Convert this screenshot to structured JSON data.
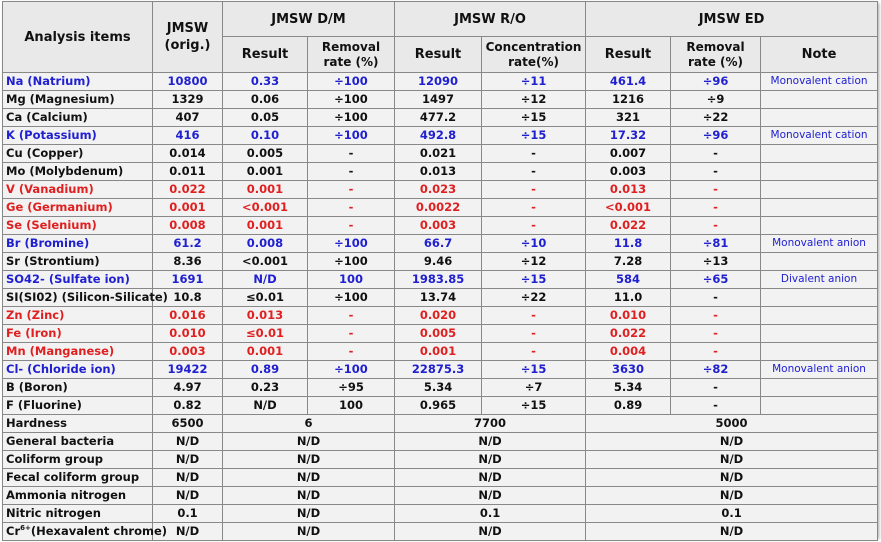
{
  "table": {
    "headers": {
      "analysis_items": "Analysis items",
      "jmsw_orig": "JMSW (orig.)",
      "dm_group": "JMSW D/M",
      "ro_group": "JMSW R/O",
      "ed_group": "JMSW ED",
      "result": "Result",
      "removal_rate": "Removal rate (%)",
      "concentration_rate": "Concentration rate(%)",
      "note": "Note"
    },
    "rows": [
      {
        "name": "Na (Natrium)",
        "orig": "10800",
        "dm_result": "0.33",
        "dm_removal": "÷100",
        "ro_result": "12090",
        "ro_conc": "÷11",
        "ed_result": "461.4",
        "ed_removal": "÷96",
        "note": "Monovalent cation",
        "style": "blue"
      },
      {
        "name": "Mg (Magnesium)",
        "orig": "1329",
        "dm_result": "0.06",
        "dm_removal": "÷100",
        "ro_result": "1497",
        "ro_conc": "÷12",
        "ed_result": "1216",
        "ed_removal": "÷9",
        "note": "",
        "style": "black"
      },
      {
        "name": "Ca (Calcium)",
        "orig": "407",
        "dm_result": "0.05",
        "dm_removal": "÷100",
        "ro_result": "477.2",
        "ro_conc": "÷15",
        "ed_result": "321",
        "ed_removal": "÷22",
        "note": "",
        "style": "black"
      },
      {
        "name": "K (Potassium)",
        "orig": "416",
        "dm_result": "0.10",
        "dm_removal": "÷100",
        "ro_result": "492.8",
        "ro_conc": "÷15",
        "ed_result": "17.32",
        "ed_removal": "÷96",
        "note": "Monovalent cation",
        "style": "blue"
      },
      {
        "name": "Cu (Copper)",
        "orig": "0.014",
        "dm_result": "0.005",
        "dm_removal": "-",
        "ro_result": "0.021",
        "ro_conc": "-",
        "ed_result": "0.007",
        "ed_removal": "-",
        "note": "",
        "style": "black"
      },
      {
        "name": "Mo (Molybdenum)",
        "orig": "0.011",
        "dm_result": "0.001",
        "dm_removal": "-",
        "ro_result": "0.013",
        "ro_conc": "-",
        "ed_result": "0.003",
        "ed_removal": "-",
        "note": "",
        "style": "black"
      },
      {
        "name": "V (Vanadium)",
        "orig": "0.022",
        "dm_result": "0.001",
        "dm_removal": "-",
        "ro_result": "0.023",
        "ro_conc": "-",
        "ed_result": "0.013",
        "ed_removal": "-",
        "note": "",
        "style": "red"
      },
      {
        "name": "Ge (Germanium)",
        "orig": "0.001",
        "dm_result": "<0.001",
        "dm_removal": "-",
        "ro_result": "0.0022",
        "ro_conc": "-",
        "ed_result": "<0.001",
        "ed_removal": "-",
        "note": "",
        "style": "red"
      },
      {
        "name": "Se (Selenium)",
        "orig": "0.008",
        "dm_result": "0.001",
        "dm_removal": "-",
        "ro_result": "0.003",
        "ro_conc": "-",
        "ed_result": "0.022",
        "ed_removal": "-",
        "note": "",
        "style": "red"
      },
      {
        "name": "Br (Bromine)",
        "orig": "61.2",
        "dm_result": "0.008",
        "dm_removal": "÷100",
        "ro_result": "66.7",
        "ro_conc": "÷10",
        "ed_result": "11.8",
        "ed_removal": "÷81",
        "note": "Monovalent anion",
        "style": "blue"
      },
      {
        "name": "Sr (Strontium)",
        "orig": "8.36",
        "dm_result": "<0.001",
        "dm_removal": "÷100",
        "ro_result": "9.46",
        "ro_conc": "÷12",
        "ed_result": "7.28",
        "ed_removal": "÷13",
        "note": "",
        "style": "black"
      },
      {
        "name": "SO42- (Sulfate ion)",
        "orig": "1691",
        "dm_result": "N/D",
        "dm_removal": "100",
        "ro_result": "1983.85",
        "ro_conc": "÷15",
        "ed_result": "584",
        "ed_removal": "÷65",
        "note": "Divalent anion",
        "style": "blue"
      },
      {
        "name": "SI(SI02) (Silicon-Silicate)",
        "orig": "10.8",
        "dm_result": "≤0.01",
        "dm_removal": "÷100",
        "ro_result": "13.74",
        "ro_conc": "÷22",
        "ed_result": "11.0",
        "ed_removal": "-",
        "note": "",
        "style": "black"
      },
      {
        "name": "Zn (Zinc)",
        "orig": "0.016",
        "dm_result": "0.013",
        "dm_removal": "-",
        "ro_result": "0.020",
        "ro_conc": "-",
        "ed_result": "0.010",
        "ed_removal": "-",
        "note": "",
        "style": "red"
      },
      {
        "name": "Fe (Iron)",
        "orig": "0.010",
        "dm_result": "≤0.01",
        "dm_removal": "-",
        "ro_result": "0.005",
        "ro_conc": "-",
        "ed_result": "0.022",
        "ed_removal": "-",
        "note": "",
        "style": "red"
      },
      {
        "name": "Mn (Manganese)",
        "orig": "0.003",
        "dm_result": "0.001",
        "dm_removal": "-",
        "ro_result": "0.001",
        "ro_conc": "-",
        "ed_result": "0.004",
        "ed_removal": "-",
        "note": "",
        "style": "red"
      },
      {
        "name": "Cl- (Chloride ion)",
        "orig": "19422",
        "dm_result": "0.89",
        "dm_removal": "÷100",
        "ro_result": "22875.3",
        "ro_conc": "÷15",
        "ed_result": "3630",
        "ed_removal": "÷82",
        "note": "Monovalent anion",
        "style": "blue"
      },
      {
        "name": "B (Boron)",
        "orig": "4.97",
        "dm_result": "0.23",
        "dm_removal": "÷95",
        "ro_result": "5.34",
        "ro_conc": "÷7",
        "ed_result": "5.34",
        "ed_removal": "-",
        "note": "",
        "style": "black"
      },
      {
        "name": "F (Fluorine)",
        "orig": "0.82",
        "dm_result": "N/D",
        "dm_removal": "100",
        "ro_result": "0.965",
        "ro_conc": "÷15",
        "ed_result": "0.89",
        "ed_removal": "-",
        "note": "",
        "style": "black"
      }
    ],
    "merged_rows": [
      {
        "name": "Hardness",
        "orig": "6500",
        "dm": "6",
        "ro": "7700",
        "ed": "5000"
      },
      {
        "name": "General bacteria",
        "orig": "N/D",
        "dm": "N/D",
        "ro": "N/D",
        "ed": "N/D"
      },
      {
        "name": "Coliform group",
        "orig": "N/D",
        "dm": "N/D",
        "ro": "N/D",
        "ed": "N/D"
      },
      {
        "name": "Fecal coliform group",
        "orig": "N/D",
        "dm": "N/D",
        "ro": "N/D",
        "ed": "N/D"
      },
      {
        "name": "Ammonia nitrogen",
        "orig": "N/D",
        "dm": "N/D",
        "ro": "N/D",
        "ed": "N/D"
      },
      {
        "name": "Nitric nitrogen",
        "orig": "0.1",
        "dm": "N/D",
        "ro": "0.1",
        "ed": "0.1"
      }
    ],
    "chrome_row": {
      "prefix": "Cr",
      "superscript": "6+",
      "suffix": "(Hexavalent chrome)",
      "orig": "N/D",
      "dm": "N/D",
      "ro": "N/D",
      "ed": "N/D"
    }
  }
}
